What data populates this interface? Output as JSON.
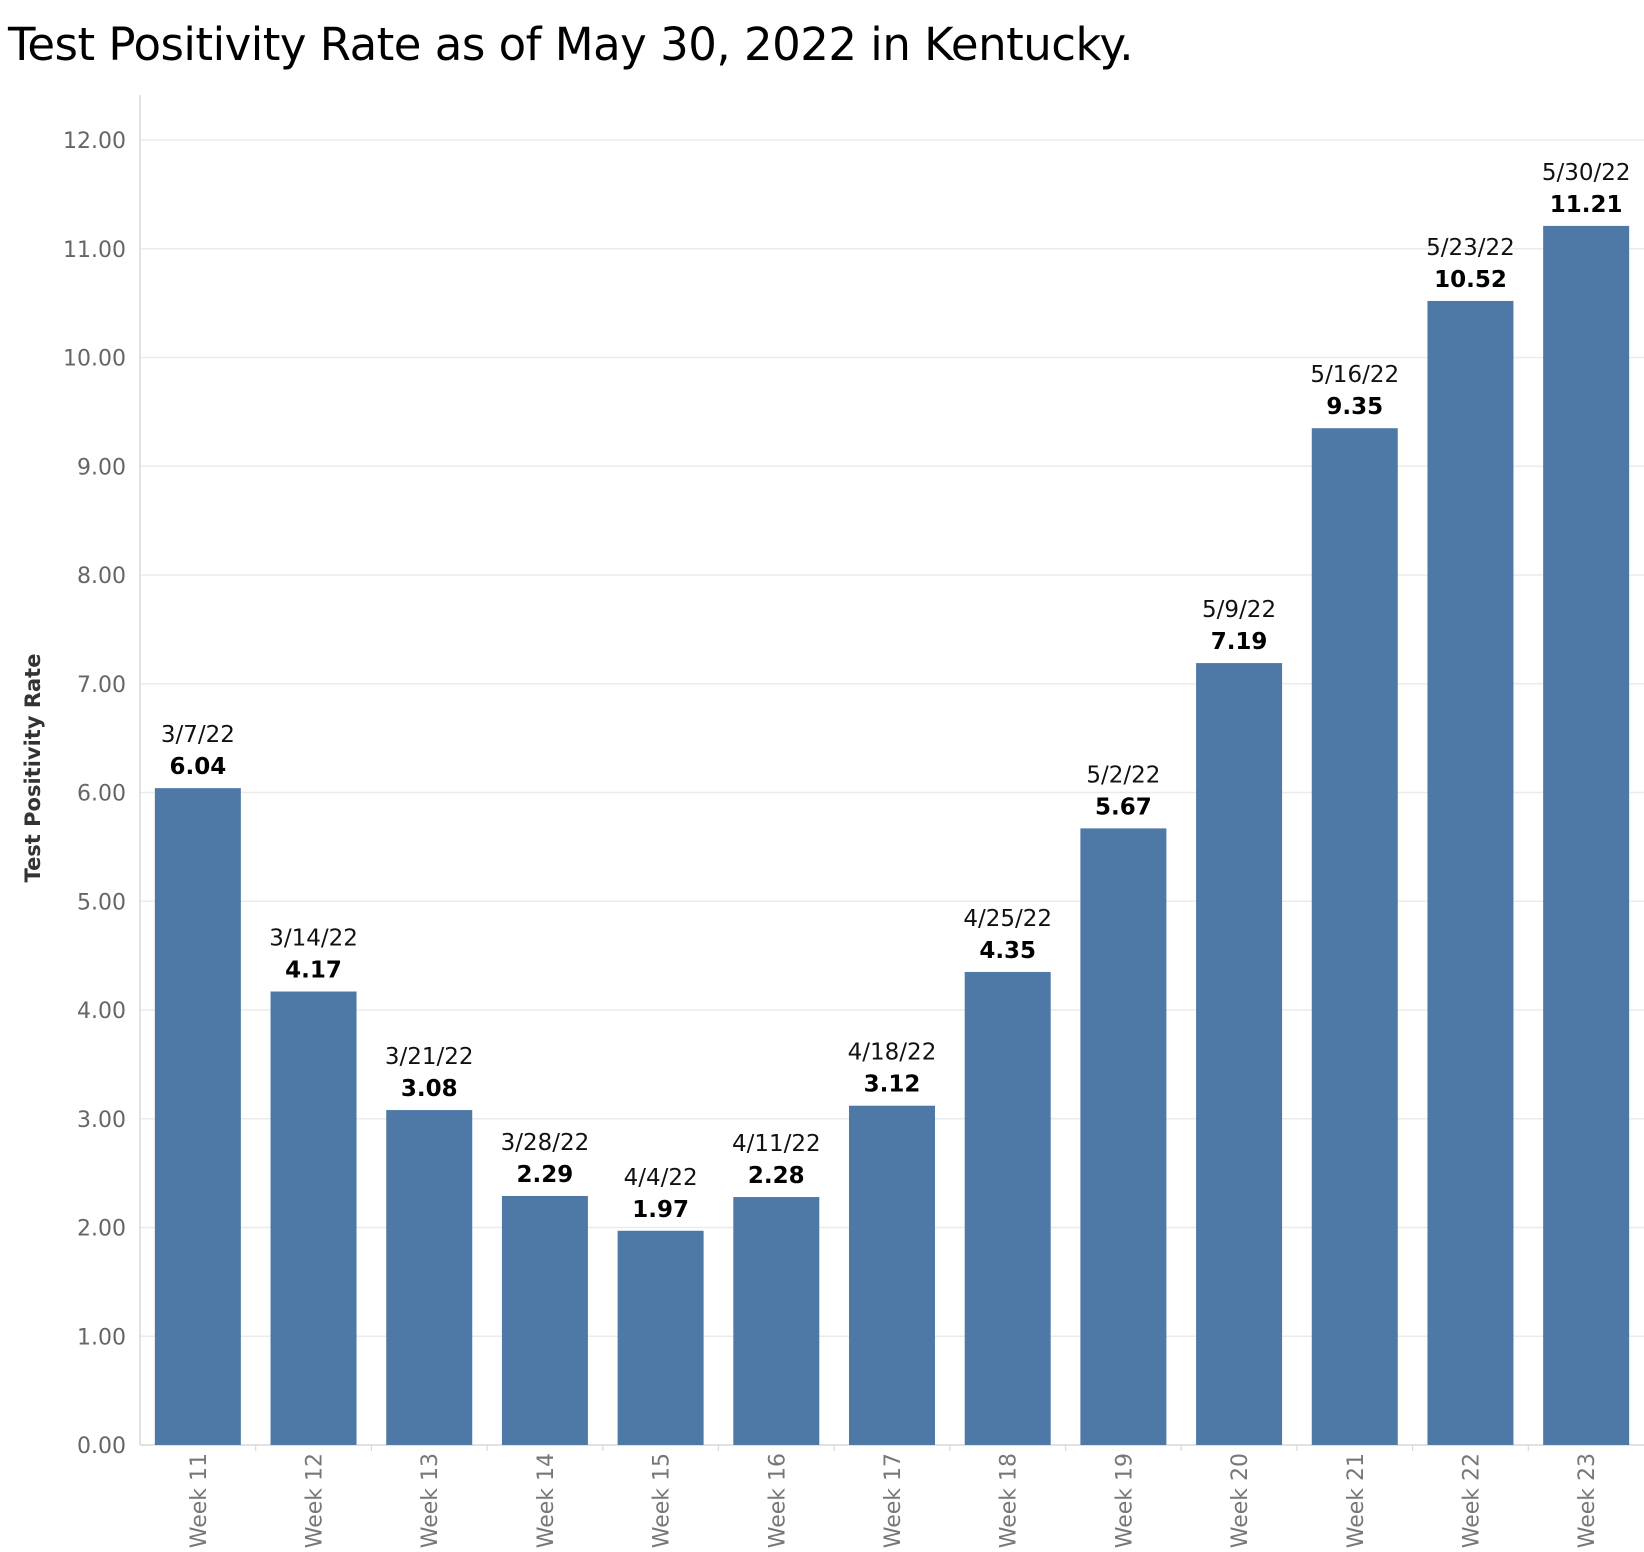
{
  "chart_data": {
    "type": "bar",
    "title": "Test Positivity Rate as of May 30, 2022 in Kentucky.",
    "ylabel": "Test Positivity Rate",
    "xlabel": "",
    "ylim": [
      0,
      12
    ],
    "yticks": [
      "0.00",
      "1.00",
      "2.00",
      "3.00",
      "4.00",
      "5.00",
      "6.00",
      "7.00",
      "8.00",
      "9.00",
      "10.00",
      "11.00",
      "12.00"
    ],
    "grid": true,
    "categories": [
      "Week 11",
      "Week 12",
      "Week 13",
      "Week 14",
      "Week 15",
      "Week 16",
      "Week 17",
      "Week 18",
      "Week 19",
      "Week 20",
      "Week 21",
      "Week 22",
      "Week 23"
    ],
    "dates": [
      "3/7/22",
      "3/14/22",
      "3/21/22",
      "3/28/22",
      "4/4/22",
      "4/11/22",
      "4/18/22",
      "4/25/22",
      "5/2/22",
      "5/9/22",
      "5/16/22",
      "5/23/22",
      "5/30/22"
    ],
    "values": [
      6.04,
      4.17,
      3.08,
      2.29,
      1.97,
      2.28,
      3.12,
      4.35,
      5.67,
      7.19,
      9.35,
      10.52,
      11.21
    ],
    "value_labels": [
      "6.04",
      "4.17",
      "3.08",
      "2.29",
      "1.97",
      "2.28",
      "3.12",
      "4.35",
      "5.67",
      "7.19",
      "9.35",
      "10.52",
      "11.21"
    ],
    "bar_color": "#4e79a7",
    "grid_color": "#ebebeb",
    "axis_color": "#d9d9d9"
  }
}
